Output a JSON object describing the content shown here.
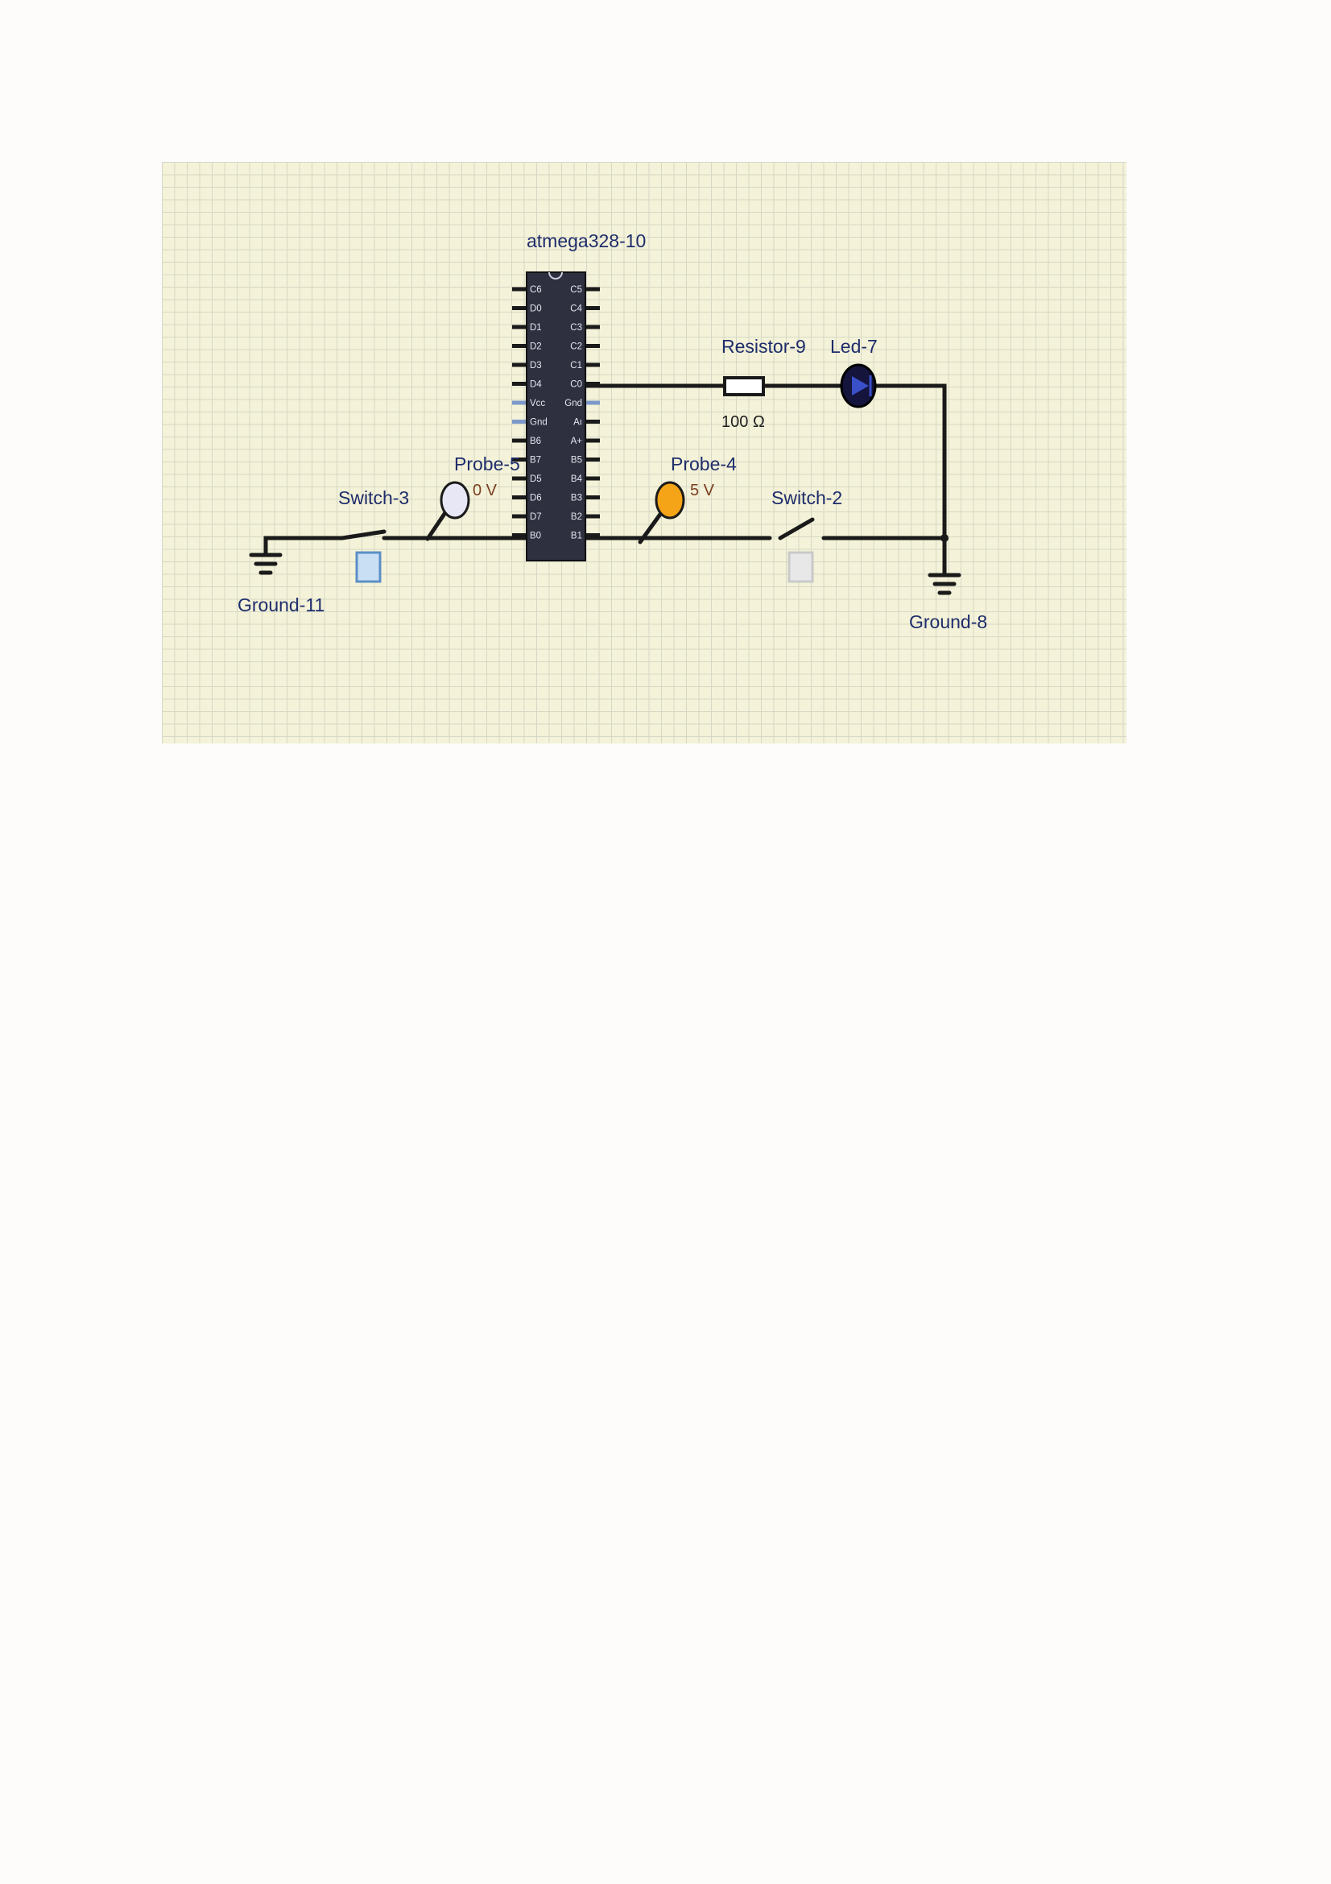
{
  "components": {
    "mcu": {
      "name": "atmega328-10",
      "left_pins": [
        "C6",
        "D0",
        "D1",
        "D2",
        "D3",
        "D4",
        "Vcc",
        "Gnd",
        "B6",
        "B7",
        "D5",
        "D6",
        "D7",
        "B0"
      ],
      "right_pins": [
        "C5",
        "C4",
        "C3",
        "C2",
        "C1",
        "C0",
        "Gnd",
        "Aı",
        "A+",
        "B5",
        "B4",
        "B3",
        "B2",
        "B1"
      ]
    },
    "resistor": {
      "name": "Resistor-9",
      "value": "100 Ω"
    },
    "led": {
      "name": "Led-7"
    },
    "probe_left": {
      "name": "Probe-5",
      "value": "0 V"
    },
    "probe_right": {
      "name": "Probe-4",
      "value": "5 V"
    },
    "switch_left": {
      "name": "Switch-3"
    },
    "switch_right": {
      "name": "Switch-2"
    },
    "ground_left": {
      "name": "Ground-11"
    },
    "ground_right": {
      "name": "Ground-8"
    }
  },
  "colors": {
    "grid_background": "#f4f2d8",
    "label": "#1e2d6b",
    "probe_low": "#e7e7f5",
    "probe_high": "#f4a416",
    "led_body": "#14143c",
    "chip_body": "#2e3040"
  }
}
